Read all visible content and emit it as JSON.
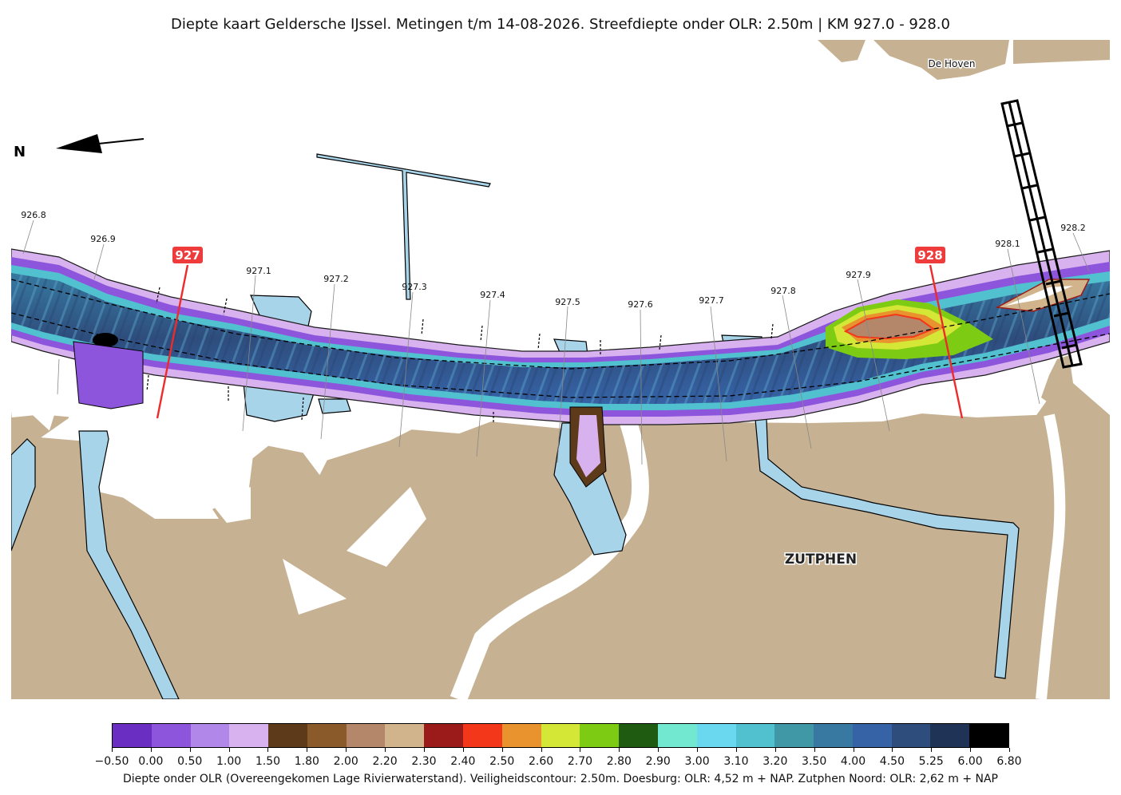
{
  "title": "Diepte kaart Geldersche IJssel. Metingen t/m 14-08-2026. Streefdiepte onder OLR: 2.50m | KM 927.0 - 928.0",
  "north_label": "N",
  "places": [
    {
      "name": "De Hoven"
    },
    {
      "name": "ZUTPHEN"
    }
  ],
  "km_markers_major": [
    "927",
    "928"
  ],
  "km_labels": [
    "926.8",
    "926.9",
    "927.1",
    "927.2",
    "927.3",
    "927.4",
    "927.5",
    "927.6",
    "927.7",
    "927.8",
    "927.9",
    "928.1",
    "928.2"
  ],
  "colorbar": {
    "ticks": [
      "−0.50",
      "0.00",
      "0.50",
      "1.00",
      "1.50",
      "1.80",
      "2.00",
      "2.20",
      "2.30",
      "2.40",
      "2.50",
      "2.60",
      "2.70",
      "2.80",
      "2.90",
      "3.00",
      "3.10",
      "3.20",
      "3.50",
      "4.00",
      "4.50",
      "5.25",
      "6.00",
      "6.80"
    ],
    "colors": [
      "#6a2fc2",
      "#8d55db",
      "#b287ea",
      "#d8b2ef",
      "#5c3a1a",
      "#8a5a2b",
      "#b5876a",
      "#d2b48c",
      "#9b1a1a",
      "#f2371a",
      "#e8932e",
      "#d4e636",
      "#7ecb14",
      "#1f5c12",
      "#72e8d0",
      "#6ad8ef",
      "#52c1cf",
      "#4097a6",
      "#3779a0",
      "#3663a6",
      "#2e4d7d",
      "#1f3356",
      "#000000"
    ],
    "caption": "Diepte onder OLR (Overeengekomen Lage Rivierwaterstand). Veiligheidscontour: 2.50m. Doesburg: OLR: 4,52 m + NAP. Zutphen Noord: OLR: 2,62 m + NAP"
  },
  "style": {
    "land": "#c6b293",
    "water_shallow": "#a8d4ea",
    "km_major": "#ee2b2b"
  }
}
